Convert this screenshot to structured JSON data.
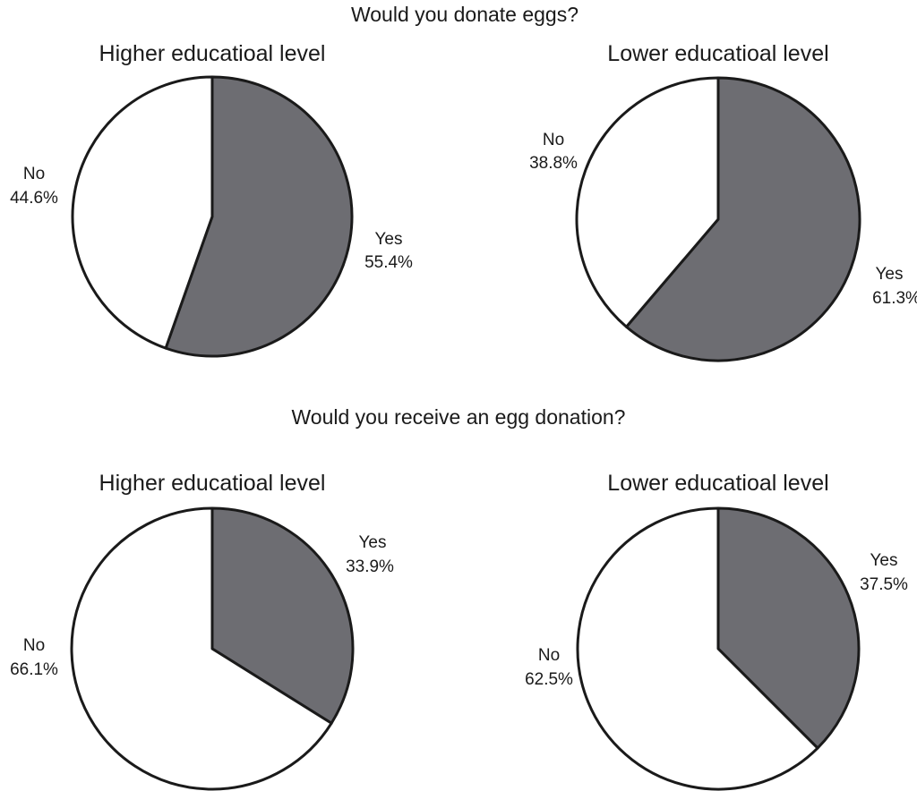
{
  "chart_data": [
    {
      "type": "pie",
      "title": "Higher educatioal level",
      "group_title": "Would you donate eggs?",
      "colors": {
        "Yes": "#6d6d72",
        "No": "#ffffff"
      },
      "slices": [
        {
          "label": "Yes",
          "value": 55.4,
          "value_text": "55.4%"
        },
        {
          "label": "No",
          "value": 44.6,
          "value_text": "44.6%"
        }
      ]
    },
    {
      "type": "pie",
      "title": "Lower educatioal level",
      "group_title": "Would you donate eggs?",
      "colors": {
        "Yes": "#6d6d72",
        "No": "#ffffff"
      },
      "slices": [
        {
          "label": "Yes",
          "value": 61.3,
          "value_text": "61.3%"
        },
        {
          "label": "No",
          "value": 38.8,
          "value_text": "38.8%"
        }
      ]
    },
    {
      "type": "pie",
      "title": "Higher educatioal level",
      "group_title": "Would you receive an egg donation?",
      "colors": {
        "Yes": "#6d6d72",
        "No": "#ffffff"
      },
      "slices": [
        {
          "label": "Yes",
          "value": 33.9,
          "value_text": "33.9%"
        },
        {
          "label": "No",
          "value": 66.1,
          "value_text": "66.1%"
        }
      ]
    },
    {
      "type": "pie",
      "title": "Lower educatioal level",
      "group_title": "Would you receive an egg donation?",
      "colors": {
        "Yes": "#6d6d72",
        "No": "#ffffff"
      },
      "slices": [
        {
          "label": "Yes",
          "value": 37.5,
          "value_text": "37.5%"
        },
        {
          "label": "No",
          "value": 62.5,
          "value_text": "62.5%"
        }
      ]
    }
  ]
}
